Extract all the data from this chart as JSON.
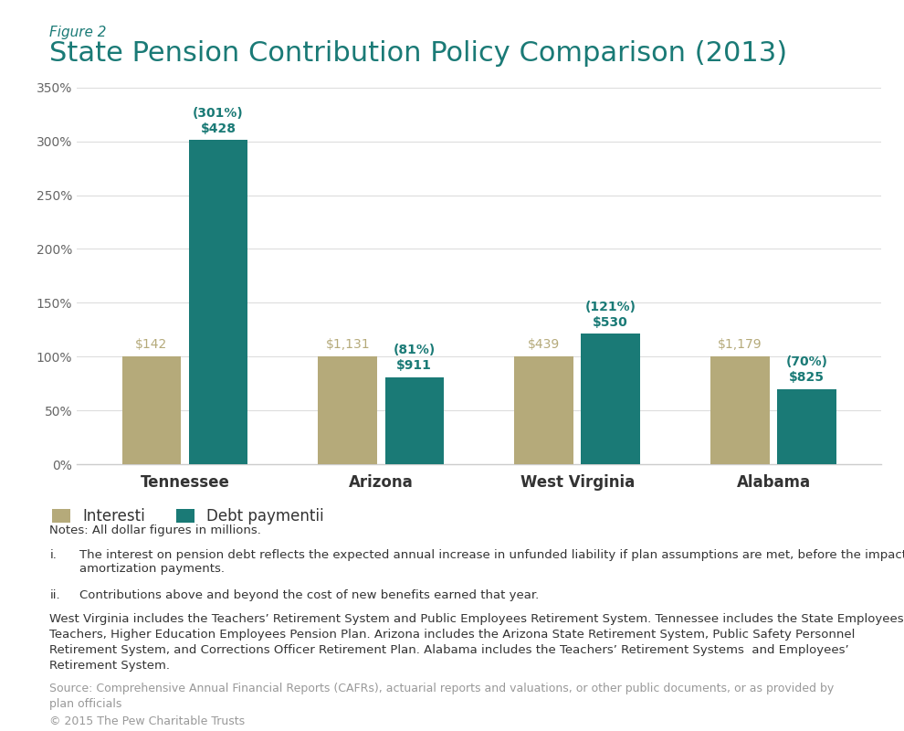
{
  "figure_label": "Figure 2",
  "title": "State Pension Contribution Policy Comparison (2013)",
  "categories": [
    "Tennessee",
    "Arizona",
    "West Virginia",
    "Alabama"
  ],
  "interest_values": [
    100,
    100,
    100,
    100
  ],
  "debt_values": [
    301,
    81,
    121,
    70
  ],
  "interest_labels": [
    "$142",
    "$1,131",
    "$439",
    "$1,179"
  ],
  "debt_label_lines1": [
    "$428",
    "$911",
    "$530",
    "$825"
  ],
  "debt_label_lines2": [
    "(301%)",
    "(81%)",
    "(121%)",
    "(70%)"
  ],
  "interest_color": "#b5aa7a",
  "debt_color": "#1a7a76",
  "title_color": "#1a7a76",
  "figure_label_color": "#1a7a76",
  "ylim": [
    0,
    360
  ],
  "yticks": [
    0,
    50,
    100,
    150,
    200,
    250,
    300,
    350
  ],
  "yticklabels": [
    "0%",
    "50%",
    "100%",
    "150%",
    "200%",
    "250%",
    "300%",
    "350%"
  ],
  "legend_interest": "Interest",
  "legend_interest_sup": "i",
  "legend_debt": "Debt payment",
  "legend_debt_sup": "ii",
  "notes_bold": "Notes: All dollar figures in millions.",
  "note_i_label": "i.",
  "note_i_text": "The interest on pension debt reflects the expected annual increase in unfunded liability if plan assumptions are met, before the impact of amortization payments.",
  "note_ii_label": "ii.",
  "note_ii_text": "Contributions above and beyond the cost of new benefits earned that year.",
  "body_text": "West Virginia includes the Teachers’ Retirement System and Public Employees Retirement System. Tennessee includes the State Employees, Teachers, Higher Education Employees Pension Plan. Arizona includes the Arizona State Retirement System, Public Safety Personnel Retirement System, and Corrections Officer Retirement Plan. Alabama includes the Teachers’ Retirement Systems  and Employees’ Retirement System.",
  "source_text": "Source: Comprehensive Annual Financial Reports (CAFRs), actuarial reports and valuations, or other public documents, or as provided by plan officials",
  "copyright_text": "© 2015 The Pew Charitable Trusts",
  "background_color": "#ffffff",
  "text_color": "#333333",
  "light_text_color": "#999999",
  "grid_color": "#dddddd",
  "axis_color": "#cccccc"
}
